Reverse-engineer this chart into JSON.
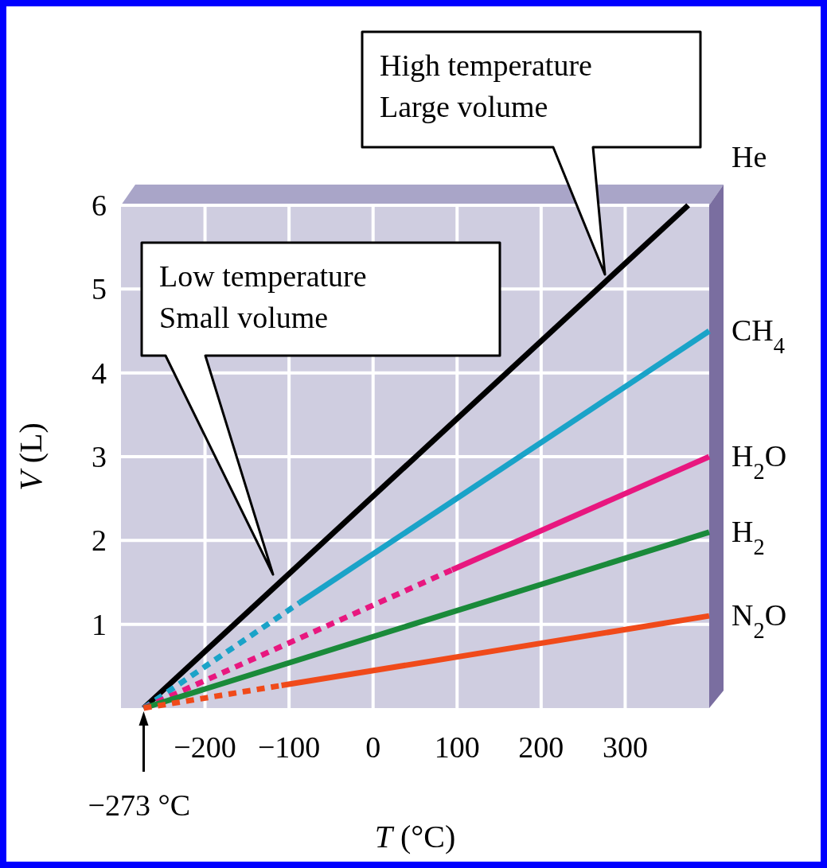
{
  "chart_data": {
    "type": "line",
    "xlabel": "T (°C)",
    "ylabel": "V (L)",
    "xlim": [
      -300,
      400
    ],
    "ylim": [
      0,
      6
    ],
    "xticks": [
      -200,
      -100,
      0,
      100,
      200,
      300
    ],
    "yticks": [
      1,
      2,
      3,
      4,
      5,
      6
    ],
    "grid": true,
    "marker": "none",
    "series": [
      {
        "name": "He",
        "color": "#000000",
        "line_style": "solid",
        "x": [
          -273,
          375
        ],
        "values": [
          0,
          6
        ]
      },
      {
        "color": "#1aa3c8",
        "line_style": "dashed",
        "x": [
          -273,
          -87
        ],
        "values": [
          0,
          1.26
        ]
      },
      {
        "name": "CH$_{4}$",
        "color": "#1aa3c8",
        "line_style": "solid",
        "x": [
          -87,
          400
        ],
        "values": [
          1.26,
          4.5
        ]
      },
      {
        "color": "#e8177f",
        "line_style": "dashed",
        "x": [
          -273,
          94
        ],
        "values": [
          0,
          1.65
        ]
      },
      {
        "name": "H$_{2}$O",
        "color": "#e8177f",
        "line_style": "solid",
        "x": [
          94,
          400
        ],
        "values": [
          1.65,
          3.0
        ]
      },
      {
        "name": "H$_{2}$",
        "color": "#1a8a3a",
        "line_style": "solid",
        "x": [
          -273,
          400
        ],
        "values": [
          0,
          2.1
        ]
      },
      {
        "color": "#f04a1a",
        "line_style": "dashed",
        "x": [
          -273,
          -109
        ],
        "values": [
          0,
          0.27
        ]
      },
      {
        "name": "N$_{2}$O",
        "color": "#f04a1a",
        "line_style": "solid",
        "x": [
          -109,
          400
        ],
        "values": [
          0.27,
          1.1
        ]
      }
    ],
    "annotations": [
      "High temperature\nLarge volume",
      "Low temperature\nSmall volume",
      {
        "text": "−273 °C",
        "x": -273,
        "y": 0
      }
    ]
  }
}
